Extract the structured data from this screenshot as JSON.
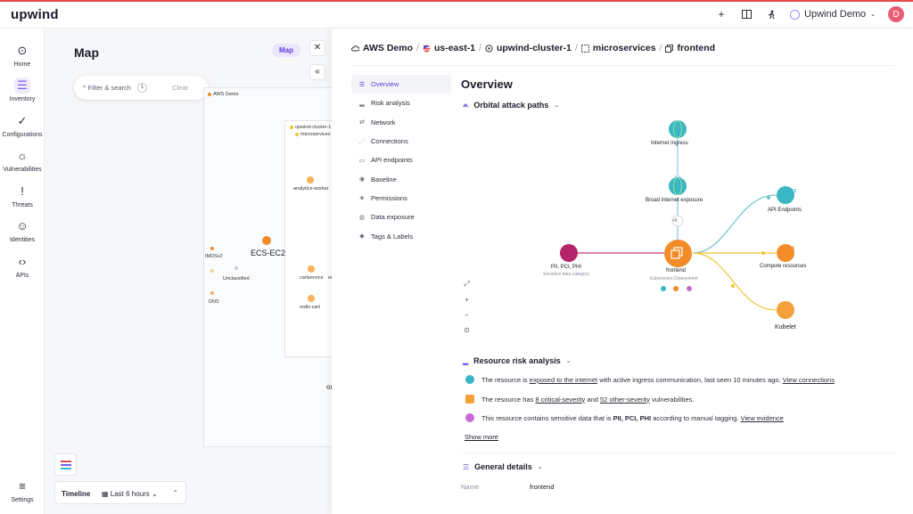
{
  "app": {
    "logo": "upwind"
  },
  "topbar": {
    "icons": [
      "plus-icon",
      "book-icon",
      "figure-icon"
    ],
    "account_name": "Upwind Demo",
    "avatar_initial": "D"
  },
  "leftnav": {
    "items": [
      {
        "label": "Home",
        "icon": "home-icon"
      },
      {
        "label": "Inventory",
        "icon": "inventory-icon"
      },
      {
        "label": "Configurations",
        "icon": "check-icon"
      },
      {
        "label": "Vulnerabilities",
        "icon": "bug-icon"
      },
      {
        "label": "Threats",
        "icon": "alert-icon"
      },
      {
        "label": "Identities",
        "icon": "user-icon"
      },
      {
        "label": "APIs",
        "icon": "code-icon"
      }
    ],
    "settings_label": "Settings"
  },
  "map": {
    "title": "Map",
    "view_pill": "Map",
    "filter_label": "Filter & search",
    "filter_count": "1",
    "clear_label": "Clear",
    "nodes": {
      "aws_demo": "AWS Demo",
      "cluster": "upwind-cluster-1",
      "namespace": "microservices",
      "analytics_worker": "analytics-worker",
      "cartservice": "cartservice",
      "redis_cart": "redis-cart",
      "imdsv2": "IMDSv2",
      "unclassified": "Unclassified",
      "dns": "DNS",
      "ecs_ec2": "ECS-EC2",
      "er": "er",
      "or": "or"
    },
    "timeline_label": "Timeline",
    "timeline_value": "Last 6 hours"
  },
  "panel": {
    "breadcrumb": [
      "AWS Demo",
      "us-east-1",
      "upwind-cluster-1",
      "microservices",
      "frontend"
    ],
    "tabs": [
      {
        "label": "Overview",
        "icon": "list-icon",
        "active": true
      },
      {
        "label": "Risk analysis",
        "icon": "chart-icon"
      },
      {
        "label": "Network",
        "icon": "arrows-icon"
      },
      {
        "label": "Connections",
        "icon": "connections-icon"
      },
      {
        "label": "API endpoints",
        "icon": "api-icon"
      },
      {
        "label": "Baseline",
        "icon": "baseline-icon"
      },
      {
        "label": "Permissions",
        "icon": "shield-icon"
      },
      {
        "label": "Data exposure",
        "icon": "data-icon"
      },
      {
        "label": "Tags & Labels",
        "icon": "tag-icon"
      }
    ],
    "title": "Overview",
    "orbital_title": "Orbital attack paths",
    "graph": {
      "internet_ingress": "Internet Ingress",
      "broad_exposure": "Broad internet exposure",
      "plus_badge": "+5",
      "frontend": "frontend",
      "frontend_sub": "Kubernetes Deployment",
      "pii": "PII, PCI, PHI",
      "pii_sub": "Sensitive data category",
      "api_endpoints": "API Endpoints",
      "api_count": "512",
      "compute": "Compute resources",
      "compute_count": "6",
      "kubelet": "Kubelet"
    },
    "risk_title": "Resource risk analysis",
    "risks": {
      "r1_pre": "The resource is",
      "r1_link": "exposed to the internet",
      "r1_post": "with active ingress communication, last seen 10 minutes ago.",
      "r1_action": "View connections",
      "r2_pre": "The resource has",
      "r2_link1": "8 critical-severity",
      "r2_mid": "and",
      "r2_link2": "52 other-severity",
      "r2_post": "vulnerabilities.",
      "r3_pre": "This resource contains sensitive data that is",
      "r3_bold": "PII, PCI, PHI",
      "r3_post": "according to manual tagging.",
      "r3_action": "View evidence"
    },
    "show_more": "Show more",
    "general_title": "General details",
    "details": {
      "name_key": "Name",
      "name_value": "frontend"
    }
  },
  "colors": {
    "accent": "#7c5cf0",
    "orange": "#f28c28",
    "pink": "#c0397a",
    "teal": "#3bb6c4",
    "yellow": "#f2c230"
  }
}
